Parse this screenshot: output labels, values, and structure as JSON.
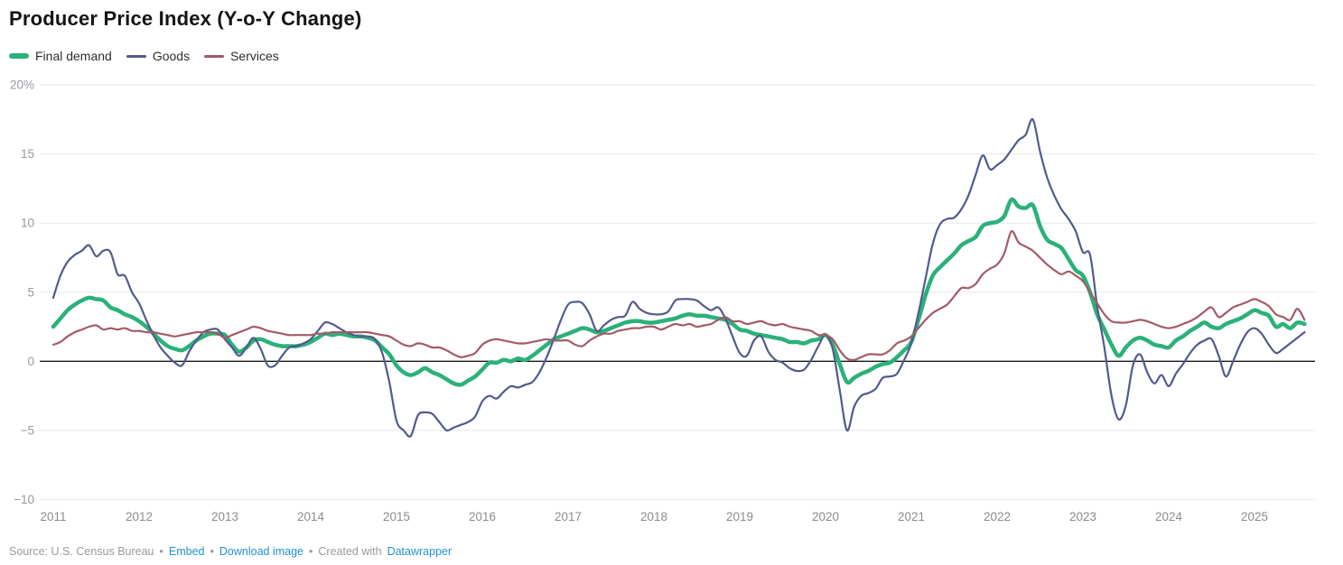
{
  "header": {
    "title": "Producer Price Index (Y-o-Y Change)"
  },
  "legend": [
    {
      "label": "Final demand",
      "color": "#2bb179"
    },
    {
      "label": "Goods",
      "color": "#525a8c"
    },
    {
      "label": "Services",
      "color": "#a45a68"
    }
  ],
  "colors": {
    "grid": "#e8e8e8",
    "zero_line": "#1a1a1a",
    "axis_label": "#98989f",
    "x_label": "#8b8b90",
    "link_blue": "#2191d0"
  },
  "chart_data": {
    "type": "line",
    "title": "Producer Price Index (Y-o-Y Change)",
    "unit": "%",
    "frequency": "monthly",
    "x_start": "2011-01",
    "x_end": "2025-08",
    "x_tick_labels": [
      "2011",
      "2012",
      "2013",
      "2014",
      "2015",
      "2016",
      "2017",
      "2018",
      "2019",
      "2020",
      "2021",
      "2022",
      "2023",
      "2024",
      "2025"
    ],
    "y_ticks": [
      20,
      15,
      10,
      5,
      0,
      -5,
      -10
    ],
    "y_tick_labels": [
      "20%",
      "15",
      "10",
      "5",
      "0",
      "−5",
      "−10"
    ],
    "ylim": [
      -10,
      20
    ],
    "grid": "horizontal",
    "legend_position": "top-left",
    "series": [
      {
        "name": "Final demand",
        "color": "#2bb179",
        "line_width": 4.5,
        "values": [
          2.5,
          3.1,
          3.7,
          4.1,
          4.4,
          4.6,
          4.5,
          4.4,
          3.9,
          3.7,
          3.4,
          3.2,
          2.9,
          2.5,
          2.0,
          1.5,
          1.1,
          0.9,
          0.8,
          1.1,
          1.5,
          1.8,
          2.0,
          2.0,
          1.9,
          1.2,
          0.7,
          1.0,
          1.5,
          1.6,
          1.4,
          1.2,
          1.1,
          1.1,
          1.1,
          1.2,
          1.4,
          1.7,
          2.0,
          1.9,
          2.0,
          1.9,
          1.8,
          1.8,
          1.7,
          1.5,
          1.0,
          0.5,
          -0.3,
          -0.8,
          -1.0,
          -0.8,
          -0.5,
          -0.8,
          -1.0,
          -1.3,
          -1.6,
          -1.7,
          -1.4,
          -1.1,
          -0.6,
          -0.1,
          -0.1,
          0.1,
          0.0,
          0.2,
          0.1,
          0.4,
          0.8,
          1.2,
          1.6,
          1.8,
          2.0,
          2.2,
          2.4,
          2.3,
          2.1,
          2.2,
          2.4,
          2.6,
          2.8,
          2.9,
          2.9,
          2.8,
          2.8,
          2.9,
          3.0,
          3.1,
          3.3,
          3.4,
          3.3,
          3.3,
          3.2,
          3.1,
          3.0,
          2.7,
          2.3,
          2.2,
          2.0,
          1.9,
          1.8,
          1.7,
          1.6,
          1.4,
          1.4,
          1.3,
          1.5,
          1.6,
          1.9,
          1.2,
          -0.2,
          -1.5,
          -1.2,
          -0.9,
          -0.7,
          -0.4,
          -0.2,
          -0.1,
          0.3,
          0.8,
          1.4,
          3.0,
          4.8,
          6.2,
          6.8,
          7.3,
          7.8,
          8.4,
          8.7,
          9.0,
          9.8,
          10.0,
          10.1,
          10.5,
          11.7,
          11.2,
          11.1,
          11.3,
          9.8,
          8.8,
          8.5,
          8.2,
          7.4,
          6.6,
          6.2,
          5.0,
          3.4,
          2.3,
          1.2,
          0.4,
          1.0,
          1.5,
          1.7,
          1.5,
          1.2,
          1.1,
          1.0,
          1.5,
          1.8,
          2.2,
          2.5,
          2.8,
          2.5,
          2.4,
          2.7,
          2.9,
          3.1,
          3.4,
          3.7,
          3.5,
          3.3,
          2.5,
          2.7,
          2.4,
          2.8,
          2.7
        ]
      },
      {
        "name": "Goods",
        "color": "#525a8c",
        "line_width": 2.2,
        "values": [
          4.6,
          6.2,
          7.2,
          7.7,
          8.0,
          8.4,
          7.6,
          8.0,
          7.9,
          6.3,
          6.2,
          5.0,
          4.2,
          3.0,
          1.9,
          1.0,
          0.4,
          -0.1,
          -0.3,
          0.7,
          1.5,
          2.1,
          2.3,
          2.3,
          1.6,
          1.0,
          0.4,
          1.0,
          1.7,
          0.9,
          -0.3,
          -0.3,
          0.4,
          1.0,
          1.1,
          1.3,
          1.6,
          2.2,
          2.8,
          2.7,
          2.4,
          2.1,
          1.9,
          1.8,
          1.8,
          1.6,
          0.6,
          -1.5,
          -4.3,
          -5.0,
          -5.4,
          -3.9,
          -3.7,
          -3.8,
          -4.4,
          -5.0,
          -4.8,
          -4.6,
          -4.4,
          -4.0,
          -2.9,
          -2.5,
          -2.7,
          -2.2,
          -1.8,
          -1.9,
          -1.7,
          -1.5,
          -0.8,
          0.3,
          1.6,
          3.0,
          4.1,
          4.3,
          4.2,
          3.4,
          2.2,
          2.6,
          3.0,
          3.2,
          3.3,
          4.3,
          3.8,
          3.5,
          3.4,
          3.4,
          3.6,
          4.4,
          4.5,
          4.5,
          4.4,
          4.0,
          3.7,
          3.9,
          3.1,
          1.8,
          0.6,
          0.4,
          1.5,
          1.8,
          0.7,
          0.1,
          -0.1,
          -0.5,
          -0.7,
          -0.6,
          0.1,
          1.1,
          1.9,
          0.9,
          -2.1,
          -5.0,
          -3.3,
          -2.5,
          -2.3,
          -2.0,
          -1.2,
          -1.1,
          -0.9,
          0.1,
          1.3,
          3.5,
          6.0,
          8.5,
          9.9,
          10.3,
          10.4,
          11.0,
          12.0,
          13.5,
          14.9,
          13.9,
          14.2,
          14.6,
          15.3,
          16.0,
          16.4,
          17.5,
          15.2,
          13.3,
          12.0,
          11.0,
          10.3,
          9.4,
          7.9,
          7.7,
          4.0,
          1.0,
          -2.5,
          -4.2,
          -3.2,
          -0.3,
          0.5,
          -0.8,
          -1.6,
          -1.0,
          -1.8,
          -0.9,
          -0.2,
          0.6,
          1.2,
          1.5,
          1.6,
          0.4,
          -1.1,
          0.0,
          1.2,
          2.1,
          2.4,
          2.0,
          1.2,
          0.6,
          0.9,
          1.3,
          1.7,
          2.1
        ]
      },
      {
        "name": "Services",
        "color": "#a45a68",
        "line_width": 2.2,
        "values": [
          1.2,
          1.4,
          1.8,
          2.1,
          2.3,
          2.5,
          2.6,
          2.3,
          2.4,
          2.3,
          2.4,
          2.2,
          2.2,
          2.1,
          2.1,
          2.0,
          1.9,
          1.8,
          1.9,
          2.0,
          2.1,
          2.1,
          2.1,
          2.0,
          1.7,
          1.9,
          2.1,
          2.3,
          2.5,
          2.4,
          2.2,
          2.1,
          2.0,
          1.9,
          1.9,
          1.9,
          1.9,
          2.0,
          2.0,
          2.1,
          2.1,
          2.1,
          2.1,
          2.1,
          2.1,
          2.0,
          1.9,
          1.8,
          1.5,
          1.2,
          1.1,
          1.3,
          1.2,
          1.0,
          1.0,
          0.8,
          0.5,
          0.3,
          0.4,
          0.6,
          1.2,
          1.5,
          1.6,
          1.5,
          1.4,
          1.3,
          1.3,
          1.4,
          1.5,
          1.6,
          1.5,
          1.5,
          1.5,
          1.2,
          1.1,
          1.5,
          1.8,
          2.0,
          2.0,
          2.2,
          2.3,
          2.4,
          2.4,
          2.5,
          2.5,
          2.3,
          2.5,
          2.7,
          2.6,
          2.7,
          2.5,
          2.6,
          2.7,
          3.0,
          3.2,
          2.9,
          2.9,
          2.7,
          2.8,
          2.9,
          2.7,
          2.6,
          2.7,
          2.5,
          2.4,
          2.3,
          2.2,
          1.9,
          1.9,
          1.6,
          0.8,
          0.2,
          0.1,
          0.3,
          0.5,
          0.5,
          0.5,
          0.8,
          1.3,
          1.5,
          1.8,
          2.4,
          3.0,
          3.5,
          3.8,
          4.1,
          4.7,
          5.3,
          5.3,
          5.6,
          6.3,
          6.7,
          7.0,
          7.8,
          9.4,
          8.6,
          8.3,
          8.0,
          7.5,
          7.0,
          6.6,
          6.3,
          6.5,
          6.2,
          5.8,
          5.0,
          4.2,
          3.4,
          2.9,
          2.8,
          2.8,
          2.9,
          3.0,
          2.9,
          2.7,
          2.5,
          2.4,
          2.5,
          2.7,
          2.9,
          3.2,
          3.6,
          3.9,
          3.2,
          3.5,
          3.9,
          4.1,
          4.3,
          4.5,
          4.3,
          4.0,
          3.4,
          3.2,
          3.0,
          3.8,
          3.0
        ]
      }
    ]
  },
  "footer": {
    "source_label": "Source: U.S. Census Bureau",
    "separator": "•",
    "links": [
      {
        "label": "Embed"
      },
      {
        "label": "Download image"
      }
    ],
    "created_with_prefix": "Created with",
    "created_with_link": "Datawrapper"
  }
}
